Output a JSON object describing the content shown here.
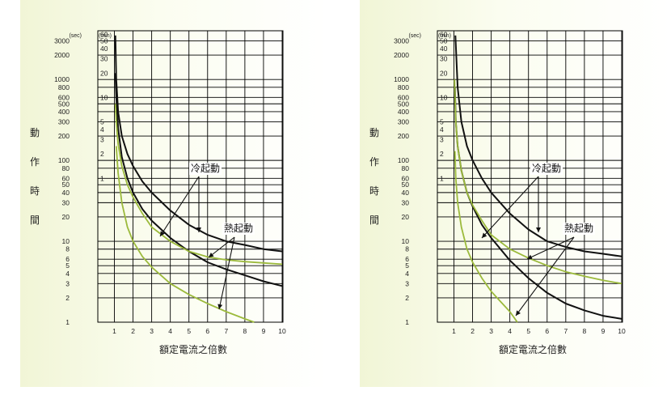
{
  "colors": {
    "cold": "#111111",
    "hot": "#9cba3c",
    "grid": "#000000"
  },
  "chart_data": [
    {
      "type": "line",
      "xlabel": "額定電流之倍數",
      "ylabel": "動作時間",
      "y_units": [
        "(sec)",
        "(min)"
      ],
      "x_ticks": [
        "1",
        "2",
        "3",
        "4",
        "5",
        "6",
        "7",
        "8",
        "9",
        "10"
      ],
      "sec_ticks": [
        {
          "v": 3000,
          "t": "3000"
        },
        {
          "v": 2000,
          "t": "2000"
        },
        {
          "v": 1000,
          "t": "1000"
        },
        {
          "v": 800,
          "t": "800"
        },
        {
          "v": 600,
          "t": "600"
        },
        {
          "v": 500,
          "t": "500"
        },
        {
          "v": 400,
          "t": "400"
        },
        {
          "v": 300,
          "t": "300"
        },
        {
          "v": 200,
          "t": "200"
        },
        {
          "v": 100,
          "t": "100"
        },
        {
          "v": 80,
          "t": "80"
        },
        {
          "v": 60,
          "t": "60"
        },
        {
          "v": 50,
          "t": "50"
        },
        {
          "v": 40,
          "t": "40"
        },
        {
          "v": 30,
          "t": "30"
        },
        {
          "v": 20,
          "t": "20"
        },
        {
          "v": 10,
          "t": "10"
        },
        {
          "v": 8,
          "t": "8"
        },
        {
          "v": 6,
          "t": "6"
        },
        {
          "v": 5,
          "t": "5"
        },
        {
          "v": 4,
          "t": "4"
        },
        {
          "v": 3,
          "t": "3"
        },
        {
          "v": 2,
          "t": "2"
        },
        {
          "v": 1,
          "t": "1"
        }
      ],
      "min_ticks": [
        {
          "v": 60,
          "t": "60"
        },
        {
          "v": 50,
          "t": "50"
        },
        {
          "v": 40,
          "t": "40"
        },
        {
          "v": 30,
          "t": "30"
        },
        {
          "v": 20,
          "t": "20"
        },
        {
          "v": 10,
          "t": "10"
        },
        {
          "v": 5,
          "t": "5"
        },
        {
          "v": 4,
          "t": "4"
        },
        {
          "v": 3,
          "t": "3"
        },
        {
          "v": 2,
          "t": "2"
        },
        {
          "v": 1,
          "t": "1"
        }
      ],
      "xlim": [
        0.5,
        10
      ],
      "ylim_sec": [
        1,
        4000
      ],
      "annotations": [
        "冷起動",
        "熱起動"
      ],
      "series": [
        {
          "kind": "cold",
          "x": [
            1.05,
            1.1,
            1.2,
            1.4,
            1.7,
            2,
            2.5,
            3,
            4,
            5,
            6,
            7,
            8,
            9,
            10
          ],
          "y": [
            3500,
            1000,
            400,
            200,
            120,
            85,
            55,
            40,
            24,
            16,
            12,
            10,
            9,
            8,
            7.5
          ]
        },
        {
          "kind": "cold",
          "x": [
            1.05,
            1.1,
            1.2,
            1.4,
            1.7,
            2,
            2.5,
            3,
            4,
            5,
            6,
            7,
            8,
            9,
            10
          ],
          "y": [
            1200,
            600,
            250,
            110,
            60,
            40,
            25,
            18,
            11,
            7.5,
            5.5,
            4.5,
            3.8,
            3.2,
            2.8
          ]
        },
        {
          "kind": "hot",
          "x": [
            1.05,
            1.1,
            1.2,
            1.4,
            1.7,
            2,
            2.5,
            3,
            4,
            5,
            6,
            7,
            8,
            9,
            10
          ],
          "y": [
            500,
            300,
            160,
            85,
            50,
            35,
            22,
            15,
            10,
            7.5,
            6.4,
            5.9,
            5.6,
            5.4,
            5.2
          ]
        },
        {
          "kind": "hot",
          "x": [
            1.1,
            1.2,
            1.4,
            1.7,
            2,
            2.5,
            3,
            4,
            5,
            6,
            7,
            8,
            8.5
          ],
          "y": [
            150,
            70,
            30,
            15,
            10,
            6.5,
            4.8,
            3,
            2.2,
            1.7,
            1.35,
            1.1,
            1
          ]
        }
      ]
    },
    {
      "type": "line",
      "xlabel": "額定電流之倍數",
      "ylabel": "動作時間",
      "y_units": [
        "(sec)",
        "(min)"
      ],
      "x_ticks": [
        "1",
        "2",
        "3",
        "4",
        "5",
        "6",
        "7",
        "8",
        "9",
        "10"
      ],
      "sec_ticks": [
        {
          "v": 3000,
          "t": "3000"
        },
        {
          "v": 2000,
          "t": "2000"
        },
        {
          "v": 1000,
          "t": "1000"
        },
        {
          "v": 800,
          "t": "800"
        },
        {
          "v": 600,
          "t": "600"
        },
        {
          "v": 500,
          "t": "500"
        },
        {
          "v": 400,
          "t": "400"
        },
        {
          "v": 300,
          "t": "300"
        },
        {
          "v": 200,
          "t": "200"
        },
        {
          "v": 100,
          "t": "100"
        },
        {
          "v": 80,
          "t": "80"
        },
        {
          "v": 60,
          "t": "60"
        },
        {
          "v": 50,
          "t": "50"
        },
        {
          "v": 40,
          "t": "40"
        },
        {
          "v": 30,
          "t": "30"
        },
        {
          "v": 20,
          "t": "20"
        },
        {
          "v": 10,
          "t": "10"
        },
        {
          "v": 8,
          "t": "8"
        },
        {
          "v": 6,
          "t": "6"
        },
        {
          "v": 5,
          "t": "5"
        },
        {
          "v": 4,
          "t": "4"
        },
        {
          "v": 3,
          "t": "3"
        },
        {
          "v": 2,
          "t": "2"
        },
        {
          "v": 1,
          "t": "1"
        }
      ],
      "min_ticks": [
        {
          "v": 60,
          "t": "60"
        },
        {
          "v": 50,
          "t": "50"
        },
        {
          "v": 40,
          "t": "40"
        },
        {
          "v": 30,
          "t": "30"
        },
        {
          "v": 20,
          "t": "20"
        },
        {
          "v": 10,
          "t": "10"
        },
        {
          "v": 5,
          "t": "5"
        },
        {
          "v": 4,
          "t": "4"
        },
        {
          "v": 3,
          "t": "3"
        },
        {
          "v": 2,
          "t": "2"
        },
        {
          "v": 1,
          "t": "1"
        }
      ],
      "xlim": [
        0.5,
        10
      ],
      "ylim_sec": [
        1,
        4000
      ],
      "annotations": [
        "冷起動",
        "熱起動"
      ],
      "series": [
        {
          "kind": "cold",
          "x": [
            1.08,
            1.2,
            1.4,
            1.7,
            2,
            2.5,
            3,
            4,
            5,
            6,
            7,
            8,
            9,
            10
          ],
          "y": [
            3500,
            800,
            300,
            150,
            100,
            60,
            40,
            22,
            14,
            10,
            8.5,
            7.5,
            7,
            6.5
          ]
        },
        {
          "kind": "cold",
          "x": [
            1.05,
            1.1,
            1.2,
            1.4,
            1.7,
            2,
            2.5,
            3,
            4,
            5,
            6,
            7,
            8,
            9,
            10
          ],
          "y": [
            800,
            300,
            150,
            75,
            40,
            27,
            16,
            11,
            5.8,
            3.5,
            2.3,
            1.7,
            1.4,
            1.2,
            1.1
          ]
        },
        {
          "kind": "hot",
          "x": [
            1.03,
            1.1,
            1.2,
            1.4,
            1.7,
            2,
            2.5,
            3,
            4,
            5,
            6,
            7,
            8,
            9,
            10
          ],
          "y": [
            1000,
            300,
            150,
            75,
            40,
            28,
            18,
            12,
            8,
            6.2,
            5,
            4.2,
            3.7,
            3.3,
            3
          ]
        },
        {
          "kind": "hot",
          "x": [
            1.05,
            1.1,
            1.2,
            1.4,
            1.7,
            2,
            2.5,
            3,
            3.5,
            4,
            4.4
          ],
          "y": [
            130,
            60,
            30,
            15,
            8,
            5.5,
            3.5,
            2.4,
            1.8,
            1.35,
            1
          ]
        }
      ]
    }
  ]
}
